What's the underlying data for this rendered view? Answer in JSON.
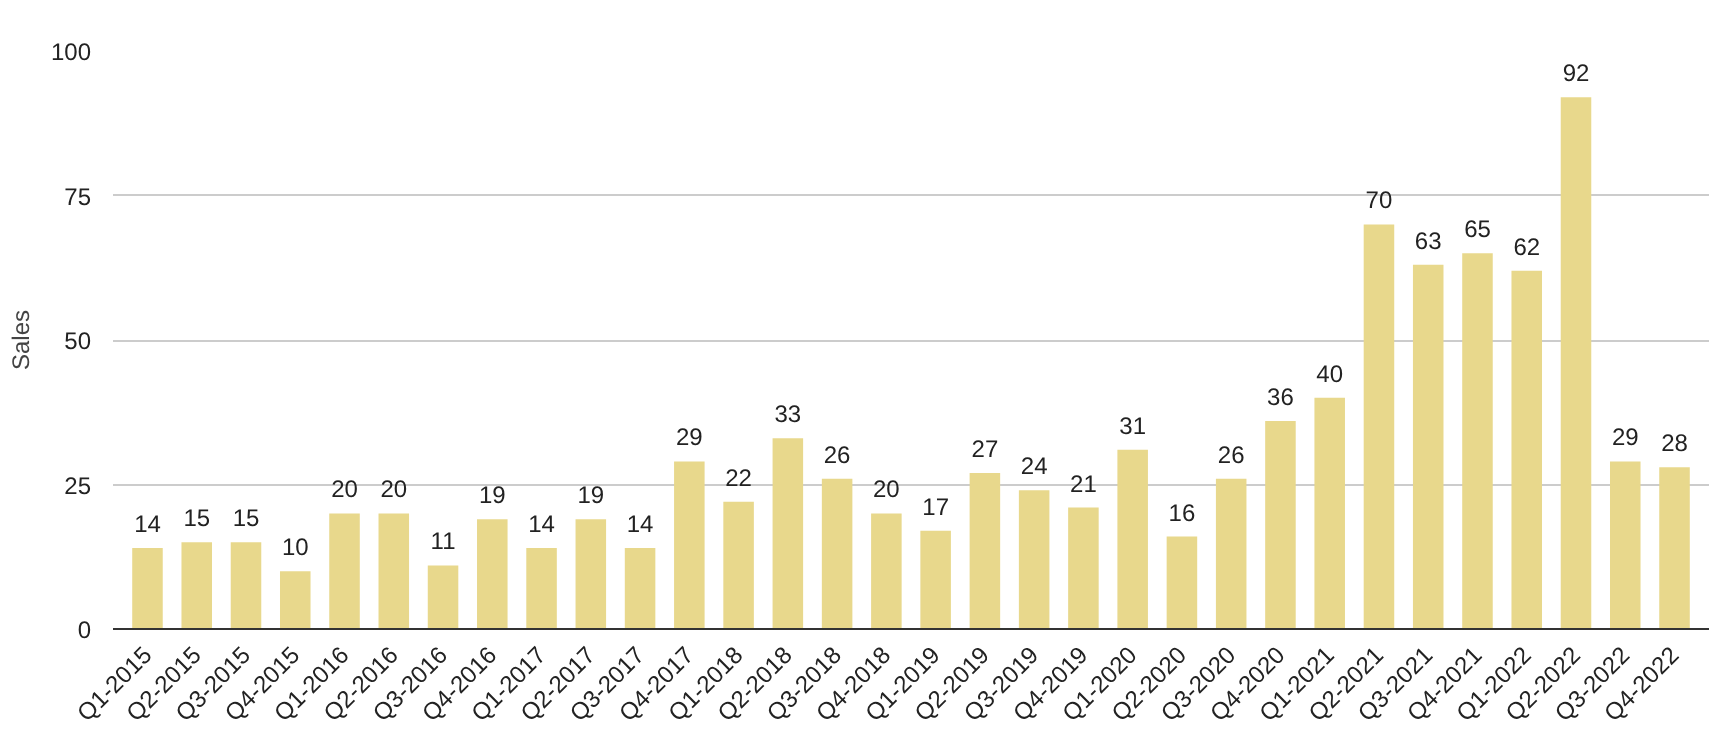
{
  "chart_data": {
    "type": "bar",
    "ylabel": "Sales",
    "categories": [
      "Q1-2015",
      "Q2-2015",
      "Q3-2015",
      "Q4-2015",
      "Q1-2016",
      "Q2-2016",
      "Q3-2016",
      "Q4-2016",
      "Q1-2017",
      "Q2-2017",
      "Q3-2017",
      "Q4-2017",
      "Q1-2018",
      "Q2-2018",
      "Q3-2018",
      "Q4-2018",
      "Q1-2019",
      "Q2-2019",
      "Q3-2019",
      "Q4-2019",
      "Q1-2020",
      "Q2-2020",
      "Q3-2020",
      "Q4-2020",
      "Q1-2021",
      "Q2-2021",
      "Q3-2021",
      "Q4-2021",
      "Q1-2022",
      "Q2-2022",
      "Q3-2022",
      "Q4-2022"
    ],
    "values": [
      14,
      15,
      15,
      10,
      20,
      20,
      11,
      19,
      14,
      19,
      14,
      29,
      22,
      33,
      26,
      20,
      17,
      27,
      24,
      21,
      31,
      16,
      26,
      36,
      40,
      70,
      63,
      65,
      62,
      92,
      29,
      28
    ],
    "color": "#e8d88c",
    "ylim": [
      0,
      100
    ],
    "yticks": [
      0,
      25,
      50,
      75,
      100
    ],
    "grid": "y",
    "data_labels": true
  }
}
